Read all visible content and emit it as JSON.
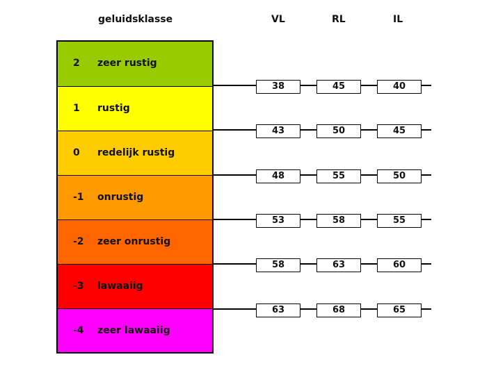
{
  "headers": {
    "class": "geluidsklasse",
    "vl": "VL",
    "rl": "RL",
    "il": "IL"
  },
  "classes": [
    {
      "num": "2",
      "label": "zeer rustig",
      "color": "#99cc00"
    },
    {
      "num": "1",
      "label": "rustig",
      "color": "#ffff00"
    },
    {
      "num": "0",
      "label": "redelijk rustig",
      "color": "#ffcc00"
    },
    {
      "num": "-1",
      "label": "onrustig",
      "color": "#ff9900"
    },
    {
      "num": "-2",
      "label": "zeer onrustig",
      "color": "#ff6600"
    },
    {
      "num": "-3",
      "label": "lawaaiig",
      "color": "#ff0000"
    },
    {
      "num": "-4",
      "label": "zeer lawaaiig",
      "color": "#ff00ff"
    }
  ],
  "boundaries": [
    {
      "vl": "38",
      "rl": "45",
      "il": "40"
    },
    {
      "vl": "43",
      "rl": "50",
      "il": "45"
    },
    {
      "vl": "48",
      "rl": "55",
      "il": "50"
    },
    {
      "vl": "53",
      "rl": "58",
      "il": "55"
    },
    {
      "vl": "58",
      "rl": "63",
      "il": "60"
    },
    {
      "vl": "63",
      "rl": "68",
      "il": "65"
    }
  ]
}
